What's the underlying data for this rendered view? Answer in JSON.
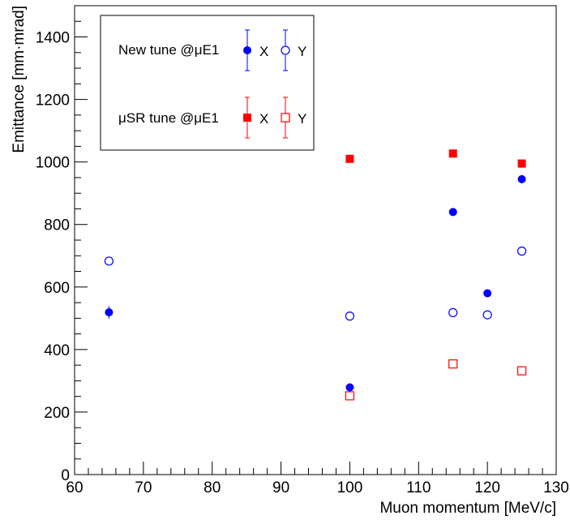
{
  "chart_data": {
    "type": "scatter",
    "title": "",
    "xlabel": "Muon momentum [MeV/c]",
    "ylabel": "Emittance [mm·mrad]",
    "xlim": [
      60,
      130
    ],
    "ylim": [
      0,
      1500
    ],
    "x_ticks": [
      60,
      70,
      80,
      90,
      100,
      110,
      120,
      130
    ],
    "y_ticks": [
      0,
      200,
      400,
      600,
      800,
      1000,
      1200,
      1400
    ],
    "grid": false,
    "legend_position": "top-left",
    "legend": {
      "rows": [
        {
          "label": "New tune @μE1",
          "x_label": "X",
          "y_label": "Y"
        },
        {
          "label": "μSR tune @μE1",
          "x_label": "X",
          "y_label": "Y"
        }
      ]
    },
    "series": [
      {
        "group": "New tune @μE1",
        "axis": "X",
        "marker": "filled-circle",
        "color": "#0000ff",
        "points": [
          {
            "x": 65,
            "y": 519,
            "err": 20
          },
          {
            "x": 100,
            "y": 279,
            "err": 0
          },
          {
            "x": 115,
            "y": 840,
            "err": 0
          },
          {
            "x": 120,
            "y": 580,
            "err": 0
          },
          {
            "x": 125,
            "y": 945,
            "err": 0
          }
        ]
      },
      {
        "group": "New tune @μE1",
        "axis": "Y",
        "marker": "open-circle",
        "color": "#0000ff",
        "points": [
          {
            "x": 65,
            "y": 683,
            "err": 0
          },
          {
            "x": 100,
            "y": 507,
            "err": 0
          },
          {
            "x": 115,
            "y": 518,
            "err": 0
          },
          {
            "x": 120,
            "y": 511,
            "err": 0
          },
          {
            "x": 125,
            "y": 715,
            "err": 0
          }
        ]
      },
      {
        "group": "μSR tune @μE1",
        "axis": "X",
        "marker": "filled-square",
        "color": "#ff0000",
        "points": [
          {
            "x": 100,
            "y": 1010,
            "err": 0
          },
          {
            "x": 115,
            "y": 1027,
            "err": 0
          },
          {
            "x": 125,
            "y": 995,
            "err": 0
          }
        ]
      },
      {
        "group": "μSR tune @μE1",
        "axis": "Y",
        "marker": "open-square",
        "color": "#ff0000",
        "points": [
          {
            "x": 100,
            "y": 252,
            "err": 0
          },
          {
            "x": 115,
            "y": 354,
            "err": 0
          },
          {
            "x": 125,
            "y": 332,
            "err": 0
          }
        ]
      }
    ]
  }
}
